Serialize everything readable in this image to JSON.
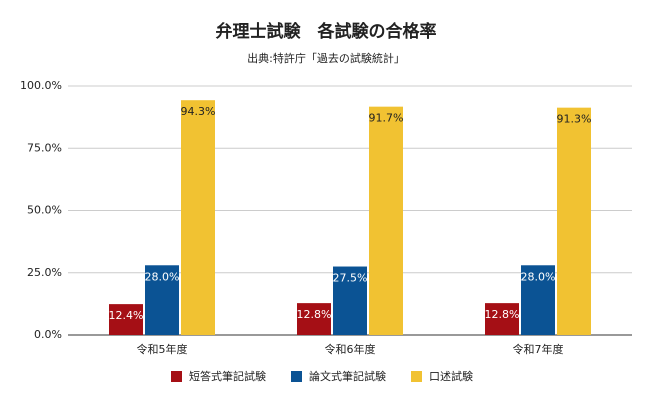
{
  "chart_data": {
    "type": "bar",
    "title": "弁理士試験　各試験の合格率",
    "subtitle": "出典:特許庁「過去の試験統計」",
    "categories": [
      "令和5年度",
      "令和6年度",
      "令和7年度"
    ],
    "series": [
      {
        "name": "短答式筆記試験",
        "color": "#a50f15",
        "values": [
          12.4,
          12.8,
          12.8
        ],
        "value_labels": [
          "12.4%",
          "12.8%",
          "12.8%"
        ]
      },
      {
        "name": "論文式筆記試験",
        "color": "#0b5394",
        "values": [
          28.0,
          27.5,
          28.0
        ],
        "value_labels": [
          "28.0%",
          "27.5%",
          "28.0%"
        ]
      },
      {
        "name": "口述試験",
        "color": "#f1c232",
        "values": [
          94.3,
          91.7,
          91.3
        ],
        "value_labels": [
          "94.3%",
          "91.7%",
          "91.3%"
        ]
      }
    ],
    "ylim": [
      0,
      100
    ],
    "yticks": [
      {
        "value": 0,
        "label": "0.0%"
      },
      {
        "value": 25,
        "label": "25.0%"
      },
      {
        "value": 50,
        "label": "50.0%"
      },
      {
        "value": 75,
        "label": "75.0%"
      },
      {
        "value": 100,
        "label": "100.0%"
      }
    ],
    "grid": true,
    "legend": "bottom"
  }
}
